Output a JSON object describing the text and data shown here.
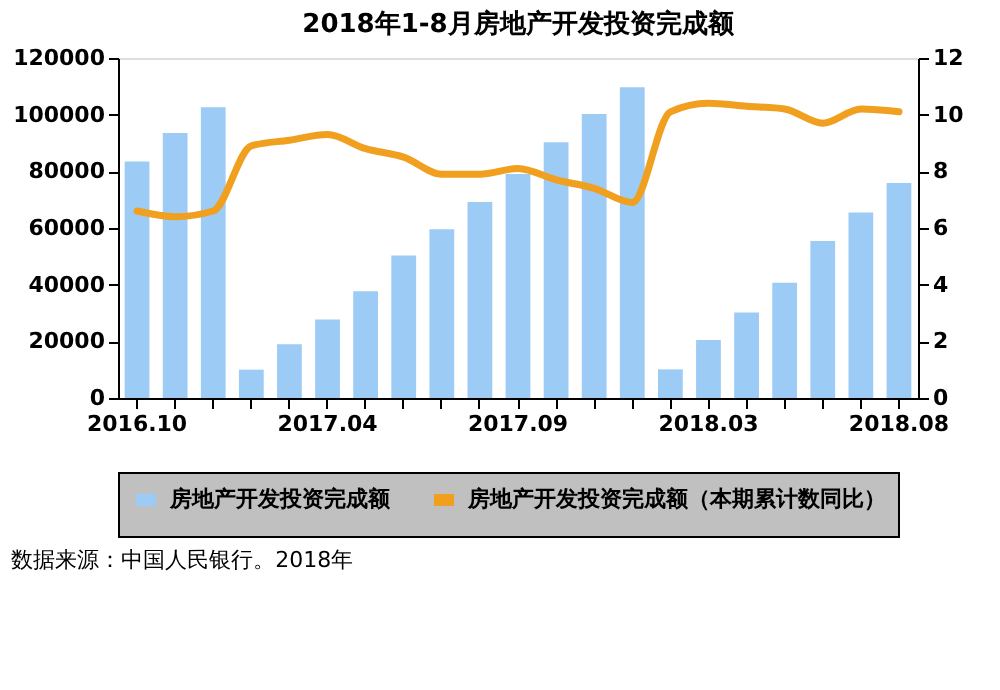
{
  "chart_data": {
    "type": "bar",
    "title": "2018年1-8月房地产开发投资完成额",
    "categories": [
      "2016.10",
      null,
      null,
      null,
      null,
      "2017.04",
      null,
      null,
      null,
      null,
      "2017.09",
      null,
      null,
      null,
      null,
      "2018.03",
      null,
      null,
      null,
      null,
      "2018.08"
    ],
    "series": [
      {
        "name": "房地产开发投资完成额",
        "color": "#9ccbf5",
        "values": [
          83500,
          93500,
          102600,
          10000,
          19000,
          27700,
          37700,
          50300,
          59600,
          69200,
          79100,
          90300,
          100200,
          109700,
          10100,
          20500,
          30200,
          40700,
          55400,
          65500,
          75900
        ]
      },
      {
        "name": "房地产开发投资完成额（本期累计数同比）",
        "color": "#f0a01e",
        "type": "line",
        "axis": "y2",
        "values": [
          6.6,
          6.4,
          6.6,
          8.9,
          9.1,
          9.3,
          8.8,
          8.5,
          7.9,
          7.9,
          8.1,
          7.7,
          7.4,
          6.9,
          10.1,
          10.4,
          10.3,
          10.2,
          9.7,
          10.2,
          10.1
        ]
      }
    ],
    "ylim": [
      0,
      120000
    ],
    "yticks": [
      0,
      20000,
      40000,
      60000,
      80000,
      100000,
      120000
    ],
    "y2lim": [
      0,
      12
    ],
    "y2ticks": [
      0,
      2,
      4,
      6,
      8,
      10,
      12
    ],
    "grid": false,
    "legend": "bottom",
    "marker": "none",
    "line_style": "solid",
    "annotations": [
      "数据来源：中国人民银行。2018年"
    ]
  }
}
